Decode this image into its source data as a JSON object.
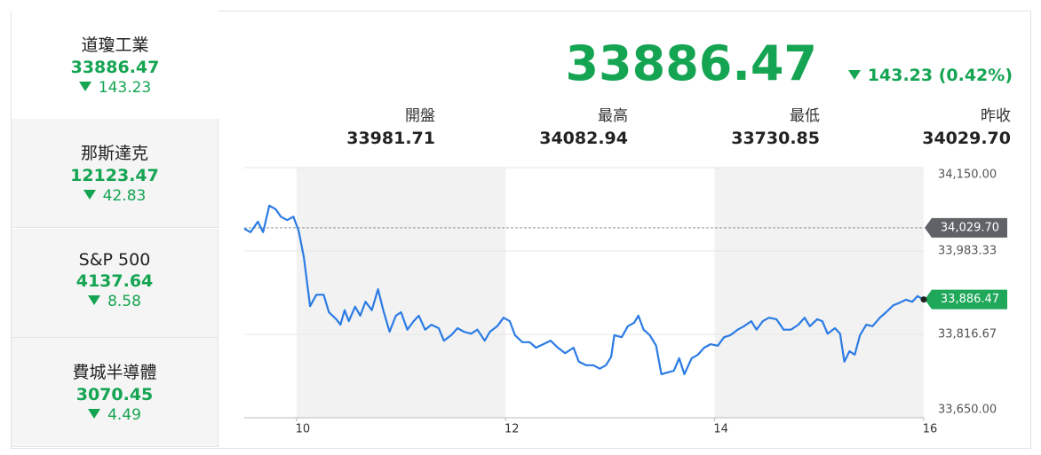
{
  "sidebar": [
    {
      "name": "道瓊工業",
      "price": "33886.47",
      "change": "143.23"
    },
    {
      "name": "那斯達克",
      "price": "12123.47",
      "change": "42.83"
    },
    {
      "name": "S&P 500",
      "price": "4137.64",
      "change": "8.58"
    },
    {
      "name": "費城半導體",
      "price": "3070.45",
      "change": "4.49"
    }
  ],
  "header": {
    "price": "33886.47",
    "change": "143.23 (0.42%)"
  },
  "stats": [
    {
      "label": "開盤",
      "value": "33981.71"
    },
    {
      "label": "最高",
      "value": "34082.94"
    },
    {
      "label": "最低",
      "value": "33730.85"
    },
    {
      "label": "昨收",
      "value": "34029.70"
    }
  ],
  "chart_data": {
    "type": "line",
    "color": "#2b7be4",
    "x": [
      9.5,
      9.56,
      9.63,
      9.68,
      9.74,
      9.8,
      9.85,
      9.91,
      9.97,
      10.02,
      10.07,
      10.13,
      10.19,
      10.26,
      10.31,
      10.38,
      10.42,
      10.46,
      10.5,
      10.56,
      10.61,
      10.66,
      10.72,
      10.78,
      10.83,
      10.89,
      10.95,
      11.0,
      11.06,
      11.12,
      11.17,
      11.23,
      11.29,
      11.36,
      11.41,
      11.48,
      11.54,
      11.6,
      11.67,
      11.73,
      11.8,
      11.85,
      11.92,
      11.98,
      12.04,
      12.09,
      12.16,
      12.23,
      12.29,
      12.36,
      12.43,
      12.5,
      12.57,
      12.65,
      12.7,
      12.77,
      12.84,
      12.9,
      12.96,
      13.01,
      13.04,
      13.11,
      13.17,
      13.23,
      13.27,
      13.32,
      13.38,
      13.44,
      13.49,
      13.54,
      13.61,
      13.66,
      13.71,
      13.78,
      13.84,
      13.9,
      13.96,
      14.03,
      14.09,
      14.15,
      14.22,
      14.28,
      14.35,
      14.4,
      14.46,
      14.52,
      14.59,
      14.66,
      14.73,
      14.8,
      14.86,
      14.91,
      14.98,
      15.03,
      15.08,
      15.15,
      15.2,
      15.24,
      15.29,
      15.34,
      15.39,
      15.45,
      15.51,
      15.58,
      15.64,
      15.71,
      15.76,
      15.83,
      15.89,
      15.94,
      16.0
    ],
    "values": [
      34028,
      34021,
      34042,
      34021,
      34074,
      34067,
      34052,
      34045,
      34052,
      34024,
      33971,
      33873,
      33896,
      33896,
      33861,
      33847,
      33836,
      33865,
      33843,
      33872,
      33854,
      33882,
      33865,
      33907,
      33865,
      33822,
      33854,
      33861,
      33826,
      33843,
      33854,
      33826,
      33836,
      33829,
      33804,
      33815,
      33829,
      33822,
      33818,
      33826,
      33804,
      33822,
      33833,
      33850,
      33843,
      33815,
      33801,
      33801,
      33790,
      33797,
      33804,
      33790,
      33779,
      33790,
      33762,
      33755,
      33755,
      33748,
      33755,
      33772,
      33815,
      33811,
      33833,
      33840,
      33854,
      33826,
      33815,
      33794,
      33737,
      33740,
      33744,
      33769,
      33737,
      33769,
      33776,
      33790,
      33797,
      33794,
      33811,
      33815,
      33826,
      33833,
      33843,
      33826,
      33843,
      33850,
      33847,
      33826,
      33826,
      33836,
      33850,
      33833,
      33847,
      33843,
      33818,
      33829,
      33818,
      33762,
      33783,
      33776,
      33815,
      33836,
      33833,
      33850,
      33861,
      33875,
      33879,
      33886,
      33882,
      33893,
      33886.47
    ],
    "xlim": [
      9.5,
      16
    ],
    "xticks": [
      10,
      12,
      14,
      16
    ],
    "ylim": [
      33650,
      34150
    ],
    "yticks": [
      {
        "value": 34150,
        "label": "34,150.00"
      },
      {
        "value": 33983.33,
        "label": "33,983.33"
      },
      {
        "value": 33816.67,
        "label": "33,816.67"
      },
      {
        "value": 33650,
        "label": "33,650.00"
      }
    ],
    "prev_close": {
      "value": 34029.7,
      "label": "34,029.70"
    },
    "current": {
      "value": 33886.47,
      "label": "33,886.47"
    }
  }
}
